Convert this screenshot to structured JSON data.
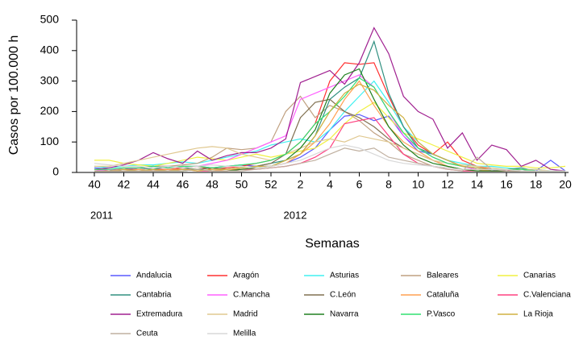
{
  "chart_data": {
    "type": "line",
    "y_label": "Casos por 100.000 h",
    "x_label": "Semanas",
    "annotations": [
      "2011",
      "2012"
    ],
    "categories": [
      "40",
      null,
      "42",
      null,
      "44",
      null,
      "46",
      null,
      "48",
      null,
      "50",
      null,
      "52",
      null,
      "2",
      null,
      "4",
      null,
      "6",
      null,
      "8",
      null,
      "10",
      null,
      "12",
      null,
      "14",
      null,
      "16",
      null,
      "18",
      null,
      "20"
    ],
    "ylim": [
      0,
      500
    ],
    "yticks": [
      0,
      100,
      200,
      300,
      400,
      500
    ],
    "series": [
      {
        "name": "Andalucia",
        "color": "#5a5aff",
        "values": [
          15,
          10,
          10,
          15,
          20,
          20,
          15,
          20,
          15,
          20,
          25,
          20,
          20,
          30,
          50,
          80,
          140,
          185,
          190,
          170,
          185,
          120,
          70,
          60,
          40,
          20,
          10,
          10,
          5,
          10,
          5,
          40,
          5
        ]
      },
      {
        "name": "Aragón",
        "color": "#ff3030",
        "values": [
          10,
          5,
          10,
          15,
          10,
          10,
          15,
          20,
          10,
          15,
          20,
          30,
          40,
          60,
          100,
          160,
          300,
          360,
          355,
          360,
          250,
          150,
          90,
          60,
          100,
          40,
          20,
          10,
          5,
          10,
          5,
          5,
          5
        ]
      },
      {
        "name": "Asturias",
        "color": "#40f0f0",
        "values": [
          20,
          15,
          20,
          25,
          25,
          30,
          35,
          30,
          40,
          50,
          60,
          70,
          90,
          100,
          110,
          100,
          140,
          200,
          250,
          300,
          230,
          150,
          100,
          60,
          40,
          30,
          20,
          20,
          15,
          10,
          10,
          5,
          5
        ]
      },
      {
        "name": "Baleares",
        "color": "#c0a080",
        "values": [
          10,
          10,
          15,
          15,
          20,
          20,
          25,
          30,
          50,
          80,
          75,
          80,
          100,
          200,
          250,
          180,
          220,
          200,
          170,
          130,
          100,
          60,
          40,
          20,
          15,
          10,
          10,
          5,
          5,
          5,
          5,
          5,
          5
        ]
      },
      {
        "name": "Canarias",
        "color": "#f0f040",
        "values": [
          40,
          40,
          30,
          25,
          20,
          30,
          40,
          50,
          45,
          40,
          50,
          60,
          50,
          60,
          70,
          80,
          110,
          160,
          200,
          230,
          180,
          130,
          110,
          90,
          70,
          50,
          30,
          25,
          20,
          20,
          15,
          15,
          20
        ]
      },
      {
        "name": "Cantabria",
        "color": "#309080",
        "values": [
          5,
          5,
          10,
          15,
          10,
          20,
          15,
          10,
          15,
          10,
          15,
          20,
          30,
          40,
          60,
          120,
          240,
          280,
          310,
          430,
          260,
          150,
          80,
          60,
          40,
          20,
          10,
          5,
          10,
          15,
          5,
          5,
          5
        ]
      },
      {
        "name": "C.Mancha",
        "color": "#ff60ff",
        "values": [
          5,
          10,
          10,
          15,
          20,
          15,
          20,
          20,
          30,
          40,
          60,
          80,
          100,
          120,
          240,
          260,
          280,
          300,
          320,
          280,
          200,
          120,
          80,
          50,
          30,
          20,
          10,
          5,
          10,
          5,
          5,
          5,
          5
        ]
      },
      {
        "name": "C.León",
        "color": "#807050",
        "values": [
          5,
          5,
          10,
          10,
          5,
          10,
          10,
          10,
          15,
          10,
          15,
          20,
          30,
          60,
          180,
          230,
          240,
          200,
          180,
          150,
          110,
          80,
          60,
          40,
          20,
          10,
          10,
          5,
          5,
          5,
          5,
          5,
          5
        ]
      },
      {
        "name": "Cataluña",
        "color": "#ffa050",
        "values": [
          5,
          5,
          5,
          10,
          5,
          10,
          10,
          10,
          5,
          10,
          10,
          15,
          20,
          30,
          60,
          100,
          160,
          240,
          300,
          220,
          150,
          100,
          70,
          40,
          20,
          10,
          10,
          5,
          5,
          5,
          5,
          5,
          5
        ]
      },
      {
        "name": "C.Valenciana",
        "color": "#ff4080",
        "values": [
          5,
          5,
          5,
          5,
          5,
          5,
          10,
          5,
          5,
          5,
          10,
          10,
          15,
          20,
          30,
          50,
          80,
          160,
          170,
          180,
          120,
          60,
          30,
          20,
          10,
          5,
          5,
          5,
          5,
          5,
          5,
          5,
          5
        ]
      },
      {
        "name": "Extremadura",
        "color": "#a02090",
        "values": [
          10,
          15,
          25,
          40,
          65,
          45,
          30,
          70,
          40,
          55,
          65,
          65,
          80,
          110,
          295,
          315,
          335,
          290,
          360,
          475,
          390,
          250,
          200,
          175,
          80,
          130,
          40,
          90,
          75,
          20,
          40,
          10,
          5
        ]
      },
      {
        "name": "Madrid",
        "color": "#e0c890",
        "values": [
          20,
          20,
          30,
          40,
          50,
          60,
          70,
          80,
          85,
          80,
          60,
          50,
          40,
          60,
          80,
          100,
          110,
          100,
          120,
          110,
          100,
          80,
          60,
          40,
          30,
          25,
          20,
          15,
          10,
          10,
          10,
          5,
          5
        ]
      },
      {
        "name": "Navarra",
        "color": "#208020",
        "values": [
          5,
          5,
          5,
          5,
          5,
          5,
          5,
          10,
          5,
          5,
          10,
          15,
          20,
          40,
          80,
          140,
          260,
          320,
          340,
          240,
          150,
          90,
          50,
          30,
          20,
          10,
          5,
          5,
          5,
          5,
          5,
          5,
          5
        ]
      },
      {
        "name": "P.Vasco",
        "color": "#30e070",
        "values": [
          10,
          10,
          15,
          15,
          20,
          15,
          20,
          20,
          15,
          20,
          25,
          30,
          40,
          60,
          100,
          160,
          200,
          250,
          310,
          280,
          200,
          130,
          80,
          50,
          30,
          20,
          15,
          10,
          10,
          10,
          5,
          5,
          5
        ]
      },
      {
        "name": "La Rioja",
        "color": "#d0b040",
        "values": [
          5,
          5,
          10,
          5,
          10,
          5,
          10,
          5,
          10,
          10,
          15,
          20,
          20,
          40,
          60,
          120,
          200,
          260,
          290,
          270,
          220,
          180,
          100,
          60,
          40,
          20,
          15,
          10,
          10,
          5,
          5,
          5,
          5
        ]
      },
      {
        "name": "Ceuta",
        "color": "#c0b0a0",
        "values": [
          5,
          5,
          5,
          5,
          5,
          5,
          5,
          10,
          5,
          5,
          5,
          10,
          15,
          20,
          30,
          40,
          60,
          80,
          70,
          80,
          50,
          40,
          30,
          20,
          10,
          5,
          50,
          10,
          5,
          5,
          5,
          5,
          5
        ]
      },
      {
        "name": "Melilla",
        "color": "#d8d8d8",
        "values": [
          30,
          25,
          20,
          20,
          15,
          20,
          15,
          20,
          25,
          20,
          20,
          15,
          20,
          30,
          40,
          60,
          80,
          90,
          80,
          60,
          40,
          30,
          25,
          20,
          15,
          10,
          10,
          10,
          10,
          5,
          5,
          5,
          5
        ]
      }
    ]
  }
}
